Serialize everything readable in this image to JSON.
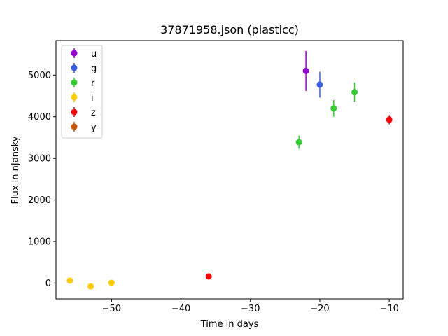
{
  "chart_data": {
    "type": "scatter",
    "title": "37871958.json (plasticc)",
    "xlabel": "Time in days",
    "ylabel": "Flux in nJansky",
    "xlim": [
      -58,
      -8
    ],
    "ylim": [
      -380,
      5830
    ],
    "xticks": [
      -50,
      -40,
      -30,
      -20,
      -10
    ],
    "xtick_labels": [
      "−50",
      "−40",
      "−30",
      "−20",
      "−10"
    ],
    "yticks": [
      0,
      1000,
      2000,
      3000,
      4000,
      5000
    ],
    "ytick_labels": [
      "0",
      "1000",
      "2000",
      "3000",
      "4000",
      "5000"
    ],
    "grid": false,
    "legend_placement": "upper-left",
    "series": [
      {
        "name": "u",
        "color": "#9400d3",
        "points": [
          {
            "x": -22,
            "y": 5100,
            "err": 480
          }
        ]
      },
      {
        "name": "g",
        "color": "#3a5fe5",
        "points": [
          {
            "x": -20,
            "y": 4770,
            "err": 310
          }
        ]
      },
      {
        "name": "r",
        "color": "#32cd32",
        "points": [
          {
            "x": -23,
            "y": 3390,
            "err": 160
          },
          {
            "x": -18,
            "y": 4200,
            "err": 200
          },
          {
            "x": -15,
            "y": 4590,
            "err": 230
          }
        ]
      },
      {
        "name": "i",
        "color": "#ffcc00",
        "points": [
          {
            "x": -56,
            "y": 60,
            "err": 30
          },
          {
            "x": -53,
            "y": -80,
            "err": 30
          },
          {
            "x": -50,
            "y": 10,
            "err": 30
          }
        ]
      },
      {
        "name": "z",
        "color": "#ff0000",
        "points": [
          {
            "x": -36,
            "y": 160,
            "err": 40
          },
          {
            "x": -10,
            "y": 3930,
            "err": 110
          }
        ]
      },
      {
        "name": "y",
        "color": "#cc5500",
        "points": []
      }
    ]
  }
}
